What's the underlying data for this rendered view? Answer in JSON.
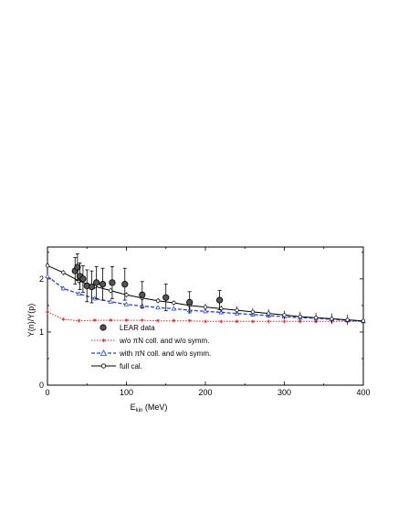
{
  "chart_data": {
    "type": "line",
    "xlabel_main": "E",
    "xlabel_sub": "kin",
    "xlabel_unit": " (MeV)",
    "ylabel": "Y(n)/Y(p)",
    "xlim": [
      0,
      400
    ],
    "ylim": [
      0,
      2.6
    ],
    "x_ticks": [
      0,
      100,
      200,
      300,
      400
    ],
    "x_tick_labels": [
      "0",
      "100",
      "200",
      "300",
      "400"
    ],
    "y_ticks": [
      0,
      1,
      2
    ],
    "y_tick_labels": [
      "0",
      "1",
      "2"
    ],
    "grid": false,
    "legend_position": "bottom-center",
    "legend": {
      "lear": "LEAR data",
      "wo_pre": "w/o  ",
      "wo_post": "N coll. and w/o symm.",
      "with_pre": "with ",
      "with_post": "N coll. and w/o symm.",
      "pi_symbol": "π",
      "full": "full cal."
    },
    "lear_data": {
      "name": "LEAR data",
      "color": "#000000",
      "points": [
        {
          "x": 35,
          "y": 2.15,
          "err": 0.25
        },
        {
          "x": 38,
          "y": 2.22,
          "err": 0.25
        },
        {
          "x": 41,
          "y": 2.05,
          "err": 0.25
        },
        {
          "x": 45,
          "y": 2.0,
          "err": 0.25
        },
        {
          "x": 50,
          "y": 1.87,
          "err": 0.3
        },
        {
          "x": 56,
          "y": 1.85,
          "err": 0.3
        },
        {
          "x": 62,
          "y": 1.93,
          "err": 0.3
        },
        {
          "x": 70,
          "y": 1.9,
          "err": 0.3
        },
        {
          "x": 82,
          "y": 1.93,
          "err": 0.3
        },
        {
          "x": 98,
          "y": 1.9,
          "err": 0.3
        },
        {
          "x": 120,
          "y": 1.7,
          "err": 0.25
        },
        {
          "x": 150,
          "y": 1.65,
          "err": 0.25
        },
        {
          "x": 180,
          "y": 1.56,
          "err": 0.2
        },
        {
          "x": 218,
          "y": 1.6,
          "err": 0.18
        }
      ]
    },
    "series": [
      {
        "key": "wo",
        "color": "#dd2222",
        "marker": "star",
        "x": [
          0,
          20,
          40,
          60,
          80,
          100,
          120,
          140,
          160,
          180,
          200,
          220,
          240,
          260,
          280,
          300,
          320,
          340,
          360,
          380,
          400
        ],
        "y": [
          1.38,
          1.24,
          1.21,
          1.22,
          1.22,
          1.22,
          1.22,
          1.21,
          1.21,
          1.21,
          1.2,
          1.2,
          1.2,
          1.2,
          1.2,
          1.2,
          1.2,
          1.2,
          1.2,
          1.2,
          1.2
        ],
        "err": [
          0.03,
          0.03,
          0.03,
          0.03,
          0.03,
          0.03,
          0.03,
          0.03,
          0.03,
          0.03,
          0.03,
          0.03,
          0.03,
          0.03,
          0.03,
          0.03,
          0.03,
          0.03,
          0.03,
          0.03,
          0.03
        ]
      },
      {
        "key": "with",
        "color": "#2244dd",
        "marker": "triangle",
        "x": [
          0,
          20,
          40,
          60,
          80,
          100,
          120,
          140,
          160,
          180,
          200,
          220,
          240,
          260,
          280,
          300,
          320,
          340,
          360,
          380,
          400
        ],
        "y": [
          2.05,
          1.82,
          1.72,
          1.63,
          1.57,
          1.52,
          1.49,
          1.46,
          1.44,
          1.41,
          1.39,
          1.37,
          1.35,
          1.33,
          1.31,
          1.29,
          1.27,
          1.26,
          1.24,
          1.22,
          1.2
        ],
        "err": [
          0.04,
          0.04,
          0.04,
          0.04,
          0.04,
          0.04,
          0.04,
          0.04,
          0.04,
          0.04,
          0.04,
          0.04,
          0.04,
          0.04,
          0.04,
          0.04,
          0.04,
          0.04,
          0.04,
          0.04,
          0.04
        ]
      },
      {
        "key": "full",
        "color": "#000000",
        "marker": "circle",
        "x": [
          0,
          20,
          40,
          60,
          80,
          100,
          120,
          140,
          160,
          180,
          200,
          220,
          240,
          260,
          280,
          300,
          320,
          340,
          360,
          380,
          400
        ],
        "y": [
          2.25,
          2.12,
          1.96,
          1.86,
          1.78,
          1.7,
          1.64,
          1.59,
          1.55,
          1.5,
          1.47,
          1.44,
          1.41,
          1.38,
          1.35,
          1.32,
          1.29,
          1.27,
          1.25,
          1.23,
          1.21
        ],
        "err": [
          0.05,
          0.05,
          0.05,
          0.05,
          0.05,
          0.05,
          0.05,
          0.05,
          0.05,
          0.06,
          0.06,
          0.06,
          0.07,
          0.07,
          0.08,
          0.08,
          0.09,
          0.09,
          0.1,
          0.1,
          0.1
        ]
      }
    ]
  }
}
